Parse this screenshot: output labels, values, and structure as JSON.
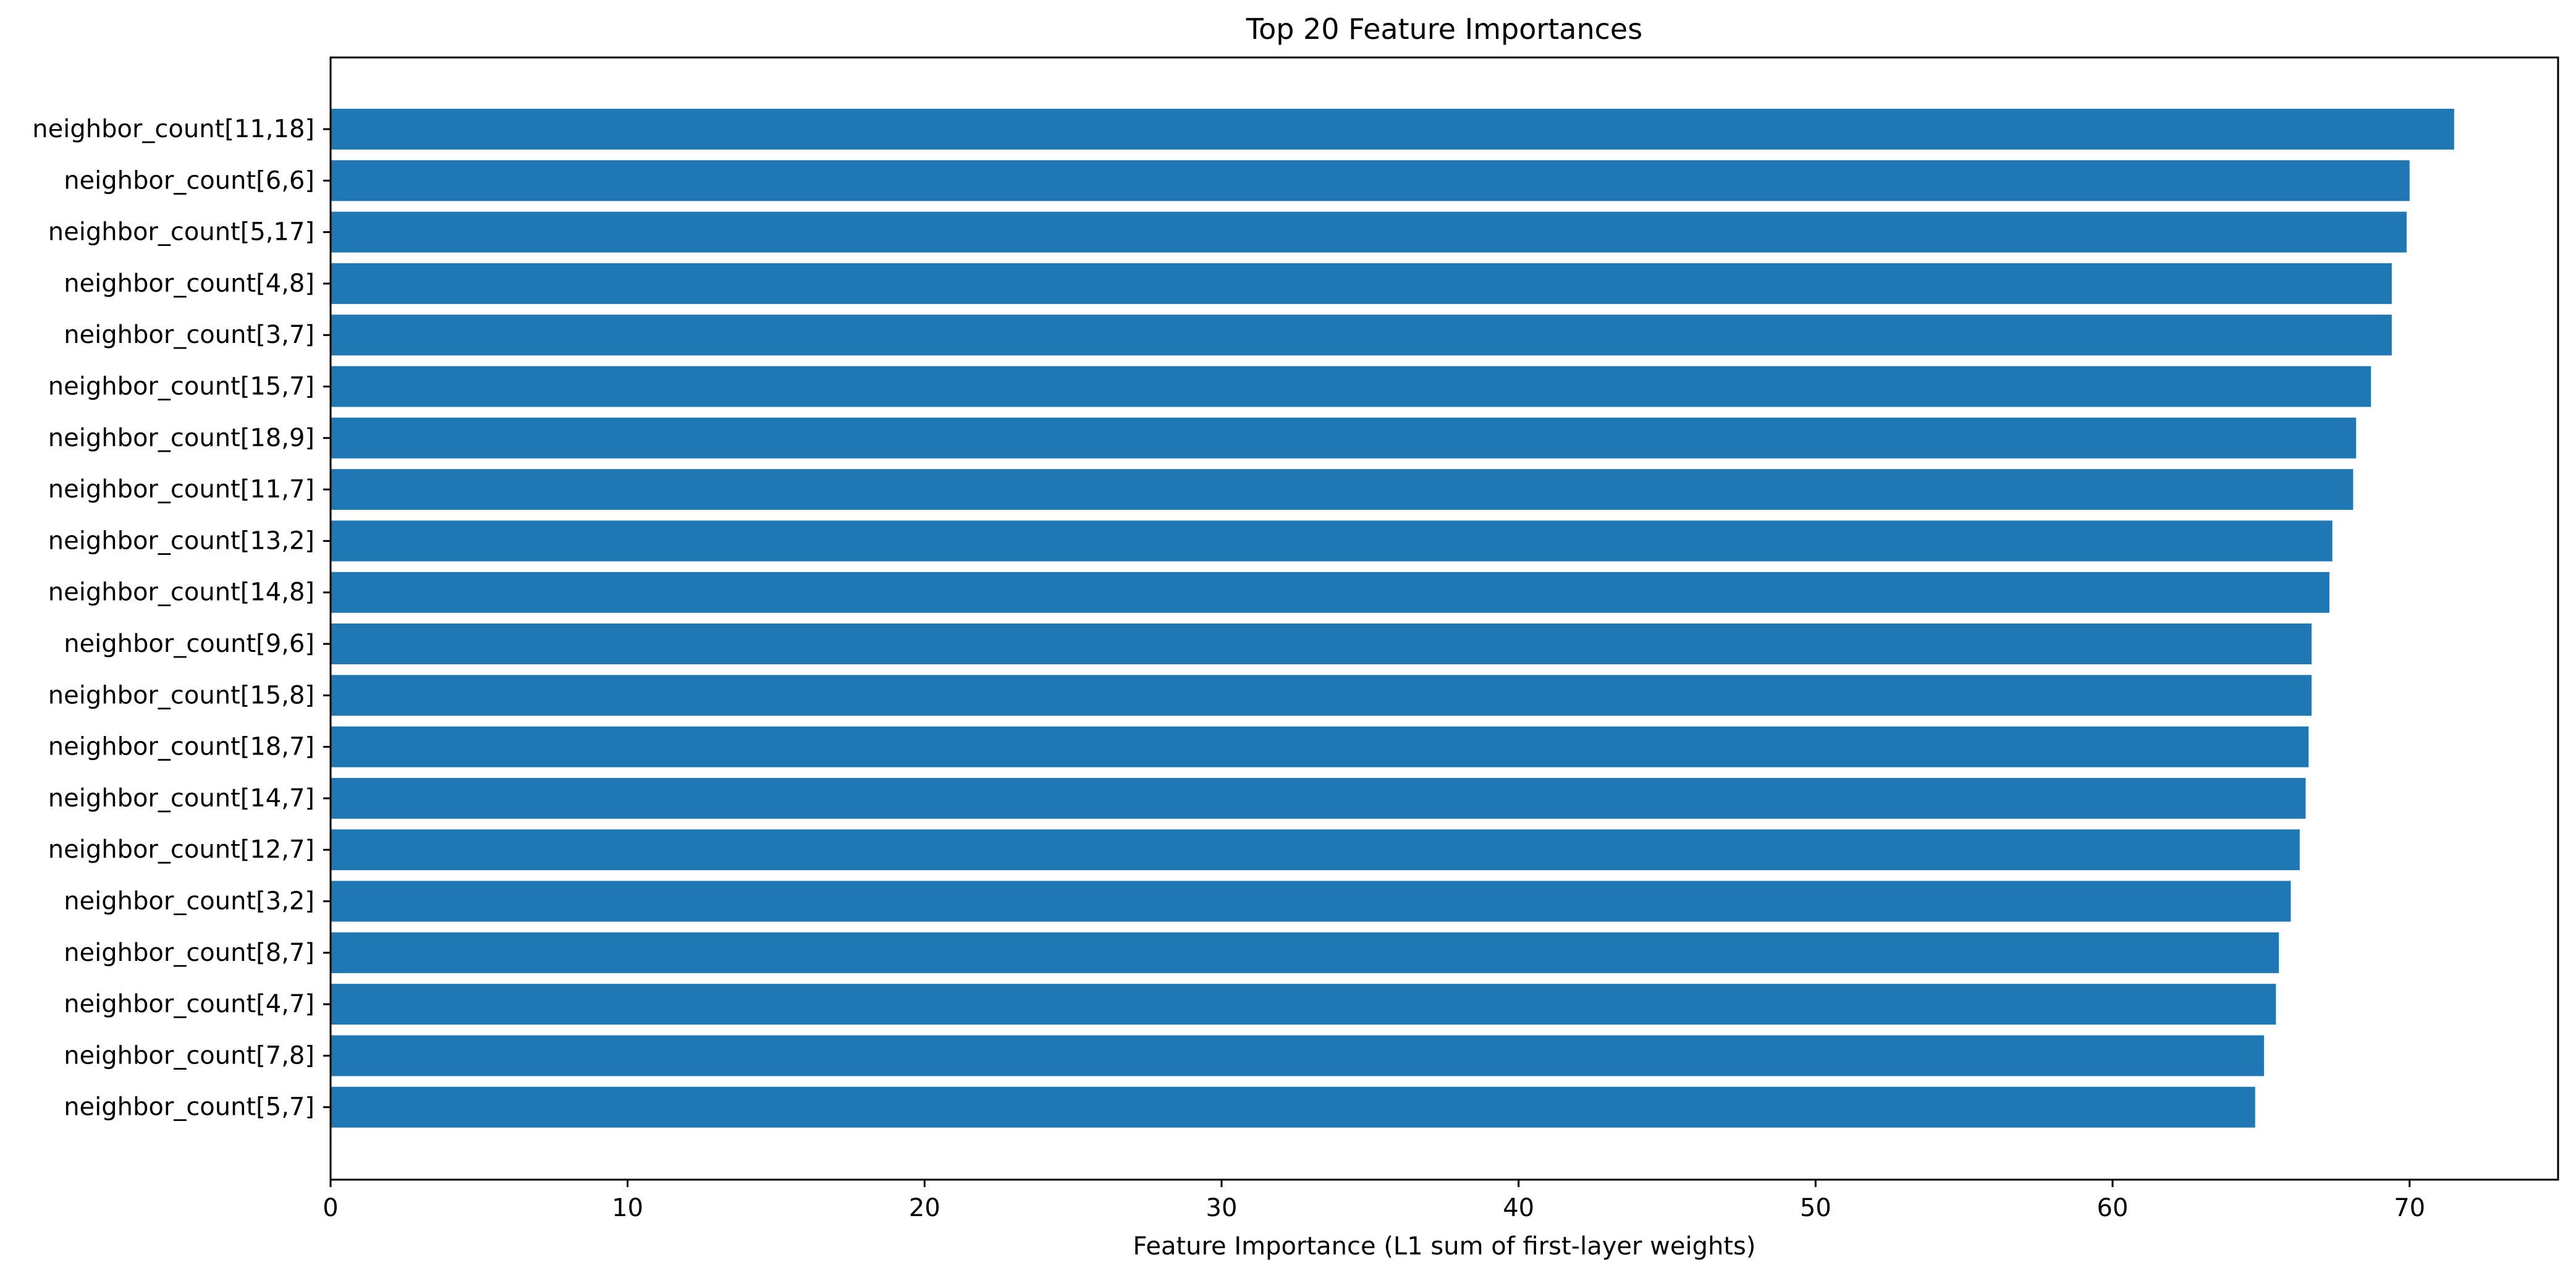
{
  "chart_data": {
    "type": "bar",
    "orientation": "horizontal",
    "title": "Top 20 Feature Importances",
    "xlabel": "Feature Importance (L1 sum of first-layer weights)",
    "ylabel": "",
    "xlim": [
      0,
      75
    ],
    "xticks": [
      0,
      10,
      20,
      30,
      40,
      50,
      60,
      70
    ],
    "grid": false,
    "legend": "none",
    "bar_color": "#1f77b4",
    "categories": [
      "neighbor_count[11,18]",
      "neighbor_count[6,6]",
      "neighbor_count[5,17]",
      "neighbor_count[4,8]",
      "neighbor_count[3,7]",
      "neighbor_count[15,7]",
      "neighbor_count[18,9]",
      "neighbor_count[11,7]",
      "neighbor_count[13,2]",
      "neighbor_count[14,8]",
      "neighbor_count[9,6]",
      "neighbor_count[15,8]",
      "neighbor_count[18,7]",
      "neighbor_count[14,7]",
      "neighbor_count[12,7]",
      "neighbor_count[3,2]",
      "neighbor_count[8,7]",
      "neighbor_count[4,7]",
      "neighbor_count[7,8]",
      "neighbor_count[5,7]"
    ],
    "values": [
      71.5,
      70.0,
      69.9,
      69.4,
      69.4,
      68.7,
      68.2,
      68.1,
      67.4,
      67.3,
      66.7,
      66.7,
      66.6,
      66.5,
      66.3,
      66.0,
      65.6,
      65.5,
      65.1,
      64.8
    ]
  }
}
